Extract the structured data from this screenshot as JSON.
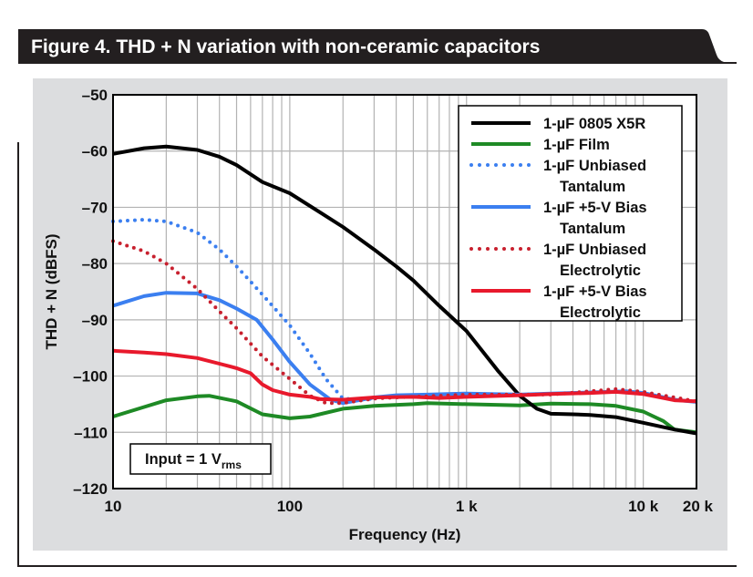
{
  "figure": {
    "title": "Figure 4. THD + N variation with non-ceramic capacitors"
  },
  "annotation": {
    "prefix": "Input = 1 V",
    "subscript": "rms"
  },
  "colors": {
    "header_bg": "#231f20",
    "panel_bg": "#dcdddf",
    "plot_bg": "#ffffff",
    "grid": "#b3b3b3",
    "black": "#000000",
    "green": "#1e8a25",
    "blue": "#3b7ff0",
    "red": "#e8192c",
    "darkred": "#c8202e"
  },
  "chart_data": {
    "type": "line",
    "title": "Figure 4. THD + N variation with non-ceramic capacitors",
    "xlabel": "Frequency (Hz)",
    "ylabel": "THD + N (dBFS)",
    "xscale": "log",
    "xlim": [
      10,
      20000
    ],
    "ylim": [
      -120,
      -50
    ],
    "x_ticks": [
      {
        "value": 10,
        "label": "10"
      },
      {
        "value": 100,
        "label": "100"
      },
      {
        "value": 1000,
        "label": "1 k"
      },
      {
        "value": 10000,
        "label": "10 k"
      },
      {
        "value": 20000,
        "label": "20 k"
      }
    ],
    "y_ticks": [
      {
        "value": -50,
        "label": "–50"
      },
      {
        "value": -60,
        "label": "–60"
      },
      {
        "value": -70,
        "label": "–70"
      },
      {
        "value": -80,
        "label": "–80"
      },
      {
        "value": -90,
        "label": "–90"
      },
      {
        "value": -100,
        "label": "–100"
      },
      {
        "value": -110,
        "label": "–110"
      },
      {
        "value": -120,
        "label": "–120"
      }
    ],
    "grid": true,
    "legend_position": "top-right",
    "series": [
      {
        "name_lines": [
          "1-µF 0805 X5R"
        ],
        "color": "#000000",
        "style": "solid",
        "points": [
          [
            10,
            -60.5
          ],
          [
            15,
            -59.5
          ],
          [
            20,
            -59.2
          ],
          [
            30,
            -59.8
          ],
          [
            40,
            -61
          ],
          [
            50,
            -62.5
          ],
          [
            70,
            -65.5
          ],
          [
            100,
            -67.5
          ],
          [
            150,
            -71
          ],
          [
            200,
            -73.5
          ],
          [
            300,
            -77.5
          ],
          [
            400,
            -80.5
          ],
          [
            500,
            -83
          ],
          [
            700,
            -87.5
          ],
          [
            1000,
            -92
          ],
          [
            1500,
            -99
          ],
          [
            2000,
            -103.5
          ],
          [
            2500,
            -105.8
          ],
          [
            3000,
            -106.7
          ],
          [
            4000,
            -106.8
          ],
          [
            5000,
            -106.9
          ],
          [
            7000,
            -107.3
          ],
          [
            10000,
            -108.3
          ],
          [
            15000,
            -109.5
          ],
          [
            20000,
            -110.2
          ]
        ]
      },
      {
        "name_lines": [
          "1-µF Film"
        ],
        "color": "#1e8a25",
        "style": "solid",
        "points": [
          [
            10,
            -107.2
          ],
          [
            15,
            -105.5
          ],
          [
            20,
            -104.3
          ],
          [
            30,
            -103.6
          ],
          [
            35,
            -103.5
          ],
          [
            50,
            -104.5
          ],
          [
            70,
            -106.8
          ],
          [
            100,
            -107.5
          ],
          [
            130,
            -107.2
          ],
          [
            200,
            -105.8
          ],
          [
            300,
            -105.3
          ],
          [
            500,
            -105
          ],
          [
            600,
            -104.8
          ],
          [
            1000,
            -105
          ],
          [
            2000,
            -105.2
          ],
          [
            3000,
            -104.9
          ],
          [
            5000,
            -105
          ],
          [
            7000,
            -105.3
          ],
          [
            10000,
            -106.3
          ],
          [
            13000,
            -108
          ],
          [
            15000,
            -109.5
          ],
          [
            20000,
            -110
          ]
        ]
      },
      {
        "name_lines": [
          "1-µF Unbiased",
          "Tantalum"
        ],
        "color": "#3b7ff0",
        "style": "dotted",
        "points": [
          [
            10,
            -72.5
          ],
          [
            15,
            -72.2
          ],
          [
            20,
            -72.5
          ],
          [
            30,
            -74.5
          ],
          [
            40,
            -77.5
          ],
          [
            50,
            -80.5
          ],
          [
            70,
            -85.5
          ],
          [
            100,
            -91
          ],
          [
            130,
            -96
          ],
          [
            160,
            -100.5
          ],
          [
            200,
            -104
          ],
          [
            250,
            -104.2
          ],
          [
            300,
            -104
          ]
        ]
      },
      {
        "name_lines": [
          "1-µF +5-V Bias",
          "Tantalum"
        ],
        "color": "#3b7ff0",
        "style": "solid",
        "points": [
          [
            10,
            -87.5
          ],
          [
            15,
            -85.8
          ],
          [
            20,
            -85.2
          ],
          [
            30,
            -85.3
          ],
          [
            40,
            -86.5
          ],
          [
            50,
            -88
          ],
          [
            65,
            -90
          ],
          [
            80,
            -93.5
          ],
          [
            100,
            -97.5
          ],
          [
            130,
            -101.5
          ],
          [
            170,
            -104.2
          ],
          [
            200,
            -104.8
          ],
          [
            300,
            -103.8
          ],
          [
            400,
            -103.4
          ],
          [
            600,
            -103.3
          ],
          [
            1000,
            -103.1
          ],
          [
            2000,
            -103.3
          ],
          [
            3000,
            -103.1
          ],
          [
            5000,
            -102.9
          ],
          [
            8000,
            -102.7
          ],
          [
            10000,
            -103
          ],
          [
            15000,
            -104.2
          ],
          [
            20000,
            -104.6
          ]
        ]
      },
      {
        "name_lines": [
          "1-µF Unbiased",
          "Electrolytic"
        ],
        "color": "#c8202e",
        "style": "dotted",
        "points": [
          [
            10,
            -76
          ],
          [
            15,
            -77.8
          ],
          [
            20,
            -80
          ],
          [
            30,
            -84.5
          ],
          [
            40,
            -88.5
          ],
          [
            50,
            -91.5
          ],
          [
            70,
            -96.5
          ],
          [
            100,
            -100.5
          ],
          [
            130,
            -103.5
          ],
          [
            160,
            -104.8
          ],
          [
            200,
            -104.8
          ],
          [
            300,
            -104
          ],
          [
            400,
            -103.8
          ],
          [
            700,
            -103.5
          ],
          [
            1000,
            -103.3
          ],
          [
            3000,
            -103.3
          ],
          [
            7000,
            -102.3
          ],
          [
            10000,
            -102.8
          ],
          [
            20000,
            -104.5
          ]
        ]
      },
      {
        "name_lines": [
          "1-µF +5-V Bias",
          "Electrolytic"
        ],
        "color": "#e8192c",
        "style": "solid",
        "points": [
          [
            10,
            -95.5
          ],
          [
            15,
            -95.8
          ],
          [
            20,
            -96.1
          ],
          [
            30,
            -96.8
          ],
          [
            40,
            -97.8
          ],
          [
            50,
            -98.6
          ],
          [
            60,
            -99.5
          ],
          [
            70,
            -101.5
          ],
          [
            80,
            -102.5
          ],
          [
            100,
            -103.3
          ],
          [
            130,
            -103.7
          ],
          [
            150,
            -104.1
          ],
          [
            200,
            -104.2
          ],
          [
            300,
            -103.8
          ],
          [
            500,
            -103.7
          ],
          [
            700,
            -103.9
          ],
          [
            1000,
            -103.7
          ],
          [
            2000,
            -103.4
          ],
          [
            3000,
            -103.2
          ],
          [
            5000,
            -103
          ],
          [
            7000,
            -102.8
          ],
          [
            10000,
            -103.2
          ],
          [
            15000,
            -104.3
          ],
          [
            20000,
            -104.5
          ]
        ]
      }
    ]
  }
}
